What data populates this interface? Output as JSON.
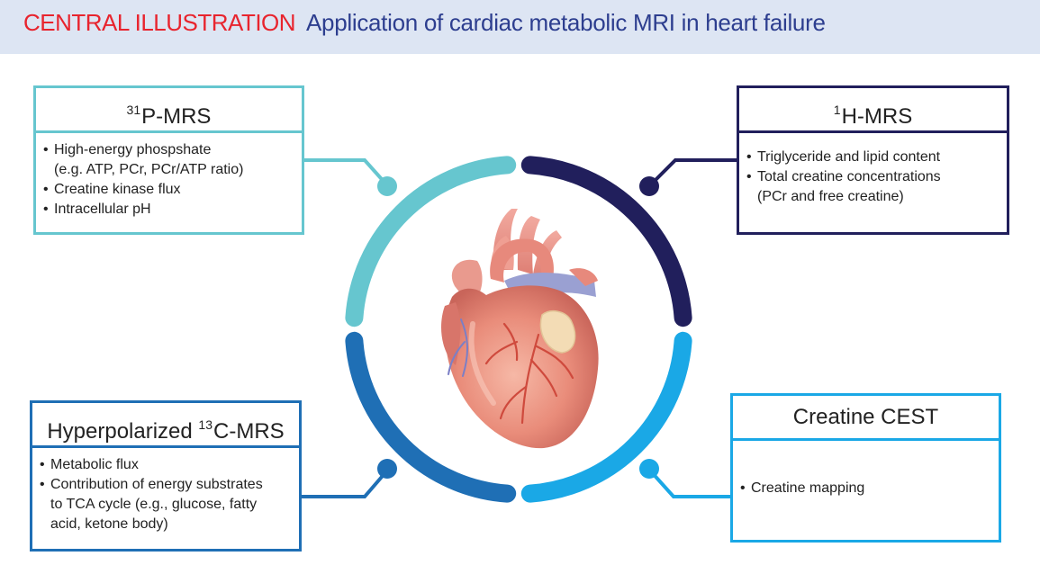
{
  "header": {
    "tag": "CENTRAL ILLUSTRATION",
    "title": "Application of cardiac metabolic MRI in heart failure"
  },
  "colors": {
    "tag": "#e8242e",
    "title": "#2d3e8f",
    "p31": "#66c6cf",
    "h1": "#211f5c",
    "c13": "#1f6fb5",
    "cest": "#1aa8e6",
    "header_bg": "#dde5f3"
  },
  "boxes": {
    "p31": {
      "sup": "31",
      "title": "P-MRS",
      "items": [
        "High-energy phospshate",
        "(e.g. ATP, PCr, PCr/ATP ratio)",
        "Creatine kinase flux",
        "Intracellular pH"
      ]
    },
    "h1": {
      "sup": "1",
      "title": "H-MRS",
      "items": [
        "Triglyceride and lipid content",
        "Total creatine concentrations",
        "(PCr and free creatine)"
      ]
    },
    "c13": {
      "prefix": "Hyperpolarized",
      "sup": "13",
      "title": "C-MRS",
      "items": [
        "Metabolic flux",
        "Contribution of energy substrates",
        "to TCA cycle (e.g., glucose, fatty",
        "acid, ketone body)"
      ]
    },
    "cest": {
      "title": "Creatine CEST",
      "items": [
        "Creatine mapping"
      ]
    }
  }
}
